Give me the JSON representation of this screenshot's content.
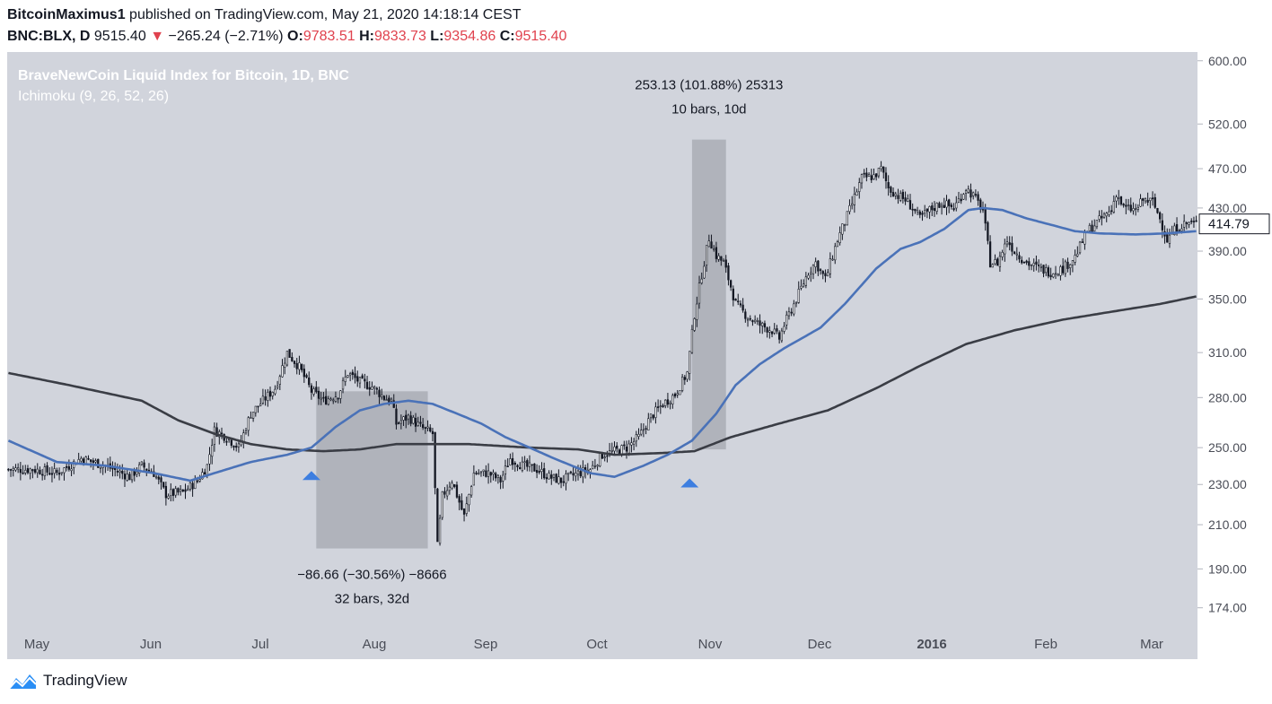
{
  "header": {
    "author": "BitcoinMaximus1",
    "published": "published on TradingView.com, May 21, 2020 14:18:14 CEST",
    "symbol": "BNC:BLX, D",
    "last": "9515.40",
    "arrow": "▼",
    "change": "−265.24 (−2.71%)",
    "o_label": "O:",
    "o_val": "9783.51",
    "h_label": "H:",
    "h_val": "9833.73",
    "l_label": "L:",
    "l_val": "9354.86",
    "c_label": "C:",
    "c_val": "9515.40"
  },
  "colors": {
    "bg": "#d1d4dc",
    "up": "#ffffff",
    "down": "#131722",
    "ma_fast": "#4a72b8",
    "ma_slow": "#3a3d45",
    "box": "#9598a1",
    "marker": "#3d7ee0",
    "neg": "#e0424e"
  },
  "chart_data": {
    "type": "candlestick",
    "title": "BraveNewCoin Liquid Index for Bitcoin, 1D, BNC",
    "subtitle": "Ichimoku (9, 26, 52, 26)",
    "x_ticks": [
      "May",
      "Jun",
      "Jul",
      "Aug",
      "Sep",
      "Oct",
      "Nov",
      "Dec",
      "2016",
      "Feb",
      "Mar"
    ],
    "y_ticks": [
      "600.00",
      "520.00",
      "470.00",
      "430.00",
      "390.00",
      "350.00",
      "310.00",
      "280.00",
      "250.00",
      "230.00",
      "210.00",
      "190.00",
      "174.00"
    ],
    "y_scale": "log",
    "ylim": [
      168,
      612
    ],
    "last_price": "414.79",
    "close_anchors": [
      [
        0,
        238
      ],
      [
        10,
        238
      ],
      [
        20,
        236
      ],
      [
        30,
        244
      ],
      [
        40,
        240
      ],
      [
        50,
        234
      ],
      [
        55,
        240
      ],
      [
        60,
        236
      ],
      [
        65,
        225
      ],
      [
        72,
        226
      ],
      [
        78,
        232
      ],
      [
        82,
        240
      ],
      [
        85,
        260
      ],
      [
        90,
        256
      ],
      [
        95,
        250
      ],
      [
        100,
        270
      ],
      [
        105,
        278
      ],
      [
        110,
        286
      ],
      [
        115,
        310
      ],
      [
        120,
        300
      ],
      [
        125,
        284
      ],
      [
        130,
        278
      ],
      [
        136,
        282
      ],
      [
        140,
        296
      ],
      [
        145,
        290
      ],
      [
        150,
        287
      ],
      [
        155,
        280
      ],
      [
        158,
        278
      ],
      [
        160,
        264
      ],
      [
        165,
        268
      ],
      [
        170,
        262
      ],
      [
        175,
        258
      ],
      [
        177,
        200
      ],
      [
        179,
        224
      ],
      [
        183,
        232
      ],
      [
        188,
        214
      ],
      [
        192,
        236
      ],
      [
        198,
        236
      ],
      [
        203,
        232
      ],
      [
        207,
        244
      ],
      [
        212,
        240
      ],
      [
        218,
        238
      ],
      [
        223,
        234
      ],
      [
        228,
        232
      ],
      [
        235,
        236
      ],
      [
        240,
        238
      ],
      [
        245,
        246
      ],
      [
        250,
        248
      ],
      [
        255,
        250
      ],
      [
        260,
        256
      ],
      [
        265,
        268
      ],
      [
        270,
        276
      ],
      [
        275,
        282
      ],
      [
        280,
        296
      ],
      [
        283,
        338
      ],
      [
        286,
        370
      ],
      [
        289,
        402
      ],
      [
        292,
        386
      ],
      [
        295,
        380
      ],
      [
        298,
        360
      ],
      [
        300,
        346
      ],
      [
        305,
        336
      ],
      [
        310,
        330
      ],
      [
        315,
        326
      ],
      [
        318,
        320
      ],
      [
        320,
        330
      ],
      [
        325,
        350
      ],
      [
        330,
        372
      ],
      [
        333,
        380
      ],
      [
        337,
        366
      ],
      [
        342,
        400
      ],
      [
        347,
        428
      ],
      [
        352,
        460
      ],
      [
        357,
        462
      ],
      [
        360,
        470
      ],
      [
        363,
        450
      ],
      [
        367,
        442
      ],
      [
        370,
        438
      ],
      [
        373,
        430
      ],
      [
        376,
        420
      ],
      [
        380,
        428
      ],
      [
        385,
        435
      ],
      [
        390,
        430
      ],
      [
        395,
        450
      ],
      [
        398,
        442
      ],
      [
        402,
        428
      ],
      [
        405,
        380
      ],
      [
        408,
        380
      ],
      [
        412,
        400
      ],
      [
        415,
        390
      ],
      [
        420,
        380
      ],
      [
        425,
        375
      ],
      [
        430,
        372
      ],
      [
        435,
        375
      ],
      [
        440,
        385
      ],
      [
        445,
        408
      ],
      [
        450,
        418
      ],
      [
        455,
        428
      ],
      [
        457,
        445
      ],
      [
        460,
        430
      ],
      [
        465,
        428
      ],
      [
        468,
        438
      ],
      [
        472,
        436
      ],
      [
        475,
        420
      ],
      [
        478,
        400
      ],
      [
        482,
        412
      ],
      [
        487,
        416
      ],
      [
        490,
        414.79
      ]
    ],
    "count_days": 491,
    "ma_fast": {
      "name": "",
      "points": [
        [
          0,
          254
        ],
        [
          20,
          242
        ],
        [
          40,
          240
        ],
        [
          60,
          236
        ],
        [
          75,
          232
        ],
        [
          85,
          236
        ],
        [
          100,
          242
        ],
        [
          115,
          246
        ],
        [
          125,
          250
        ],
        [
          135,
          262
        ],
        [
          145,
          272
        ],
        [
          155,
          276
        ],
        [
          165,
          278
        ],
        [
          175,
          276
        ],
        [
          185,
          270
        ],
        [
          195,
          264
        ],
        [
          205,
          256
        ],
        [
          215,
          250
        ],
        [
          225,
          244
        ],
        [
          240,
          236
        ],
        [
          250,
          234
        ],
        [
          262,
          240
        ],
        [
          272,
          246
        ],
        [
          282,
          254
        ],
        [
          292,
          270
        ],
        [
          300,
          288
        ],
        [
          310,
          302
        ],
        [
          320,
          313
        ],
        [
          335,
          328
        ],
        [
          345,
          346
        ],
        [
          358,
          375
        ],
        [
          368,
          392
        ],
        [
          376,
          398
        ],
        [
          386,
          410
        ],
        [
          396,
          428
        ],
        [
          402,
          430
        ],
        [
          410,
          428
        ],
        [
          420,
          420
        ],
        [
          430,
          414
        ],
        [
          440,
          408
        ],
        [
          450,
          406
        ],
        [
          465,
          405
        ],
        [
          478,
          406
        ],
        [
          490,
          408
        ]
      ]
    },
    "ma_slow": {
      "name": "",
      "points": [
        [
          0,
          296
        ],
        [
          25,
          288
        ],
        [
          55,
          278
        ],
        [
          70,
          266
        ],
        [
          85,
          258
        ],
        [
          100,
          252
        ],
        [
          115,
          249
        ],
        [
          130,
          248
        ],
        [
          145,
          249
        ],
        [
          160,
          252
        ],
        [
          190,
          252
        ],
        [
          215,
          250
        ],
        [
          235,
          249
        ],
        [
          250,
          246
        ],
        [
          270,
          247
        ],
        [
          283,
          248
        ],
        [
          298,
          256
        ],
        [
          318,
          264
        ],
        [
          338,
          272
        ],
        [
          358,
          286
        ],
        [
          375,
          300
        ],
        [
          395,
          316
        ],
        [
          415,
          326
        ],
        [
          435,
          334
        ],
        [
          455,
          340
        ],
        [
          475,
          346
        ],
        [
          490,
          352
        ]
      ]
    },
    "annotations": [
      {
        "type": "price-range",
        "start_day": 127,
        "end_day": 173,
        "high": 284,
        "low": 199,
        "label1": "−86.66 (−30.56%) −8666",
        "label2": "32 bars, 32d"
      },
      {
        "type": "price-range",
        "start_day": 282,
        "end_day": 296,
        "high": 502,
        "low": 249,
        "label1": "253.13 (101.88%) 25313",
        "label2": "10 bars, 10d"
      }
    ],
    "markers": [
      {
        "day": 125,
        "price": 240
      },
      {
        "day": 281,
        "price": 236
      }
    ],
    "grid": false,
    "legend": "top-left"
  },
  "footer": {
    "brand": "TradingView",
    "logo_icon": "tradingview-cloud-icon"
  }
}
